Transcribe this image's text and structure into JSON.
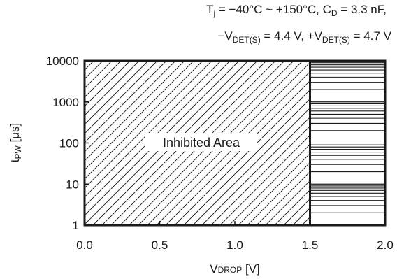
{
  "chart_data": {
    "type": "area",
    "title": "",
    "conditions": {
      "line1": {
        "t": "T",
        "t_sub": "j",
        "range": " = −40°C ~ +150°C, C",
        "c_sub": "D",
        "c_val": " = 3.3 nF,"
      },
      "line2": {
        "neg": "−V",
        "neg_sub": "DET(S)",
        "neg_val": " = 4.4 V, +V",
        "pos_sub": "DET(S)",
        "pos_val": " = 4.7 V"
      }
    },
    "x_axis": {
      "label_main": "V",
      "label_sub": "DROP",
      "label_unit": " [V]",
      "range": [
        0.0,
        2.0
      ],
      "scale": "linear",
      "ticks": [
        0.0,
        0.5,
        1.0,
        1.5,
        2.0
      ],
      "tick_labels": [
        "0.0",
        "0.5",
        "1.0",
        "1.5",
        "2.0"
      ]
    },
    "y_axis": {
      "label_main": "t",
      "label_sub": "PW",
      "label_unit": " [μs]",
      "range": [
        1,
        10000
      ],
      "scale": "log",
      "ticks": [
        1,
        10,
        100,
        1000,
        10000
      ],
      "tick_labels": [
        "1",
        "10",
        "100",
        "1000",
        "10000"
      ]
    },
    "grid": false,
    "regions": [
      {
        "name": "Inhibited Area",
        "x_range": [
          0.0,
          1.5
        ],
        "y_range": [
          1,
          10000
        ],
        "fill": "diagonal-hatch"
      },
      {
        "name": "",
        "x_range": [
          1.5,
          2.0
        ],
        "y_range": [
          1,
          10000
        ],
        "fill": "horizontal-lines",
        "note": "minor log decade gridlines"
      }
    ],
    "region_label": "Inhibited Area"
  },
  "colors": {
    "ink": "#1a1a1a",
    "background": "#ffffff"
  }
}
